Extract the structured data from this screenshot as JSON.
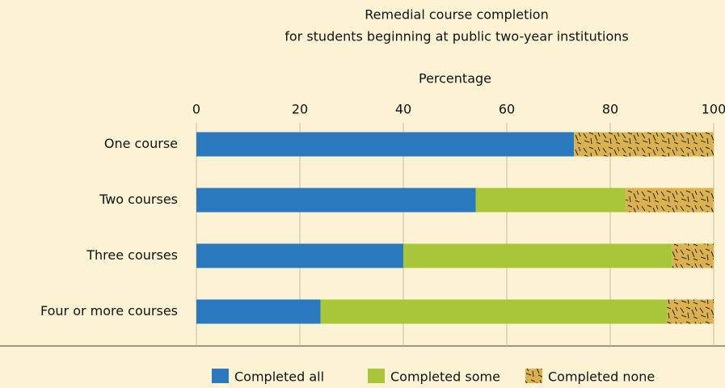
{
  "chart_data": {
    "type": "stacked-barh",
    "title": "Remedial course completion",
    "subtitle": "for students beginning at public two-year institutions",
    "xlabel": "Percentage",
    "categories": [
      "One course",
      "Two courses",
      "Three courses",
      "Four or more courses"
    ],
    "series": [
      {
        "name": "Completed all",
        "color": "#2a78bd",
        "values": [
          73,
          54,
          40,
          24
        ]
      },
      {
        "name": "Completed some",
        "color": "#a9c53a",
        "values": [
          0,
          29,
          52,
          67
        ]
      },
      {
        "name": "Completed none",
        "color": "#dcb24f",
        "pattern": true,
        "values": [
          27,
          17,
          8,
          9
        ]
      }
    ],
    "xlim": [
      0,
      100
    ],
    "xticks": [
      0,
      20,
      40,
      60,
      80,
      100
    ],
    "grid": true
  }
}
